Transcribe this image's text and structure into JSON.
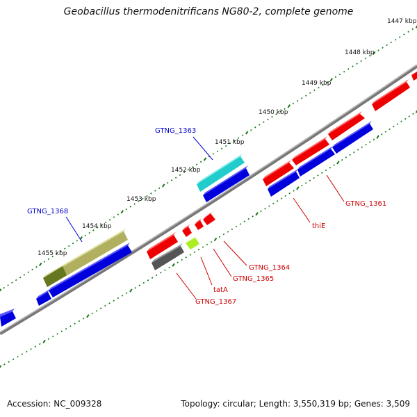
{
  "title": "Geobacillus thermodenitrificans NG80-2, complete genome",
  "footer": {
    "accession": "Accession: NC_009328",
    "summary": "Topology: circular; Length: 3,550,319 bp; Genes: 3,509"
  },
  "colors": {
    "forward_gene": "#ee0000",
    "reverse_gene": "#0000dd",
    "highlight_cyan": "#22cccc",
    "highlight_olive": "#b0b060",
    "highlight_darkolive": "#667722",
    "highlight_gray": "#666666",
    "highlight_lime": "#aaee22",
    "tick_green": "#117711",
    "backbone": "#888888",
    "label_reverse": "#0000cc",
    "label_forward": "#cc0000"
  },
  "scale": [
    {
      "label": "1447 kbp"
    },
    {
      "label": "1448 kbp"
    },
    {
      "label": "1449 kbp"
    },
    {
      "label": "1450 kbp"
    },
    {
      "label": "1451 kbp"
    },
    {
      "label": "1452 kbp"
    },
    {
      "label": "1453 kbp"
    },
    {
      "label": "1454 kbp"
    },
    {
      "label": "1455 kbp"
    }
  ],
  "gene_labels": [
    {
      "text": "GTNG_1363",
      "strand": "reverse"
    },
    {
      "text": "GTNG_1368",
      "strand": "reverse"
    },
    {
      "text": "GTNG_1361",
      "strand": "forward"
    },
    {
      "text": "thiE",
      "strand": "forward"
    },
    {
      "text": "GTNG_1364",
      "strand": "forward"
    },
    {
      "text": "GTNG_1365",
      "strand": "forward"
    },
    {
      "text": "tatA",
      "strand": "forward"
    },
    {
      "text": "GTNG_1367",
      "strand": "forward"
    }
  ]
}
